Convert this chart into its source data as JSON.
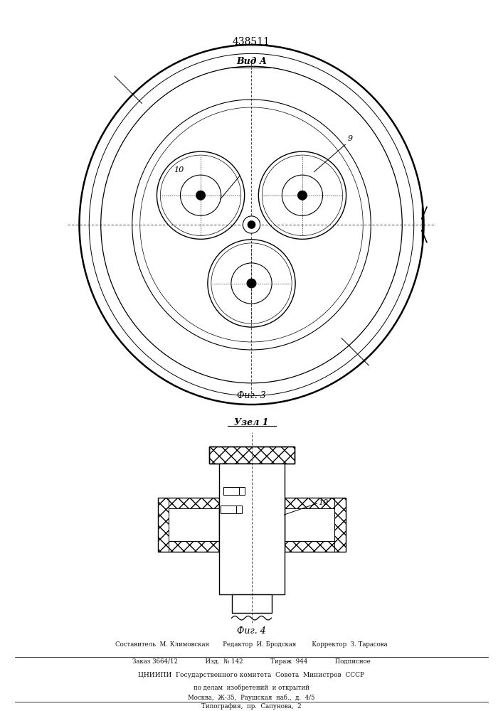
{
  "patent_number": "438511",
  "fig3_label": "Вид А",
  "fig3_caption": "Фиг. 3",
  "fig4_label": "Узел 1",
  "fig4_caption": "Фиг. 4",
  "label_9": "9",
  "label_10": "10",
  "footer_line1": "Составитель  М. Климовская       Редактор  И. Бродская        Корректор  З. Тарасова",
  "footer_line2": "Заказ 3664/12              Изд.  № 142              Тираж  944              Подписное",
  "footer_line3": "ЦНИИПИ  Государственного комитета  Совета  Министров  СССР",
  "footer_line4": "по делам  изобретений  и открытий",
  "footer_line5": "Москва,  Ж-35,  Раушская  наб.,  д.  4/5",
  "footer_line6": "Типография,  пр.  Сапунова,  2",
  "bg_color": "#ffffff",
  "line_color": "#000000"
}
